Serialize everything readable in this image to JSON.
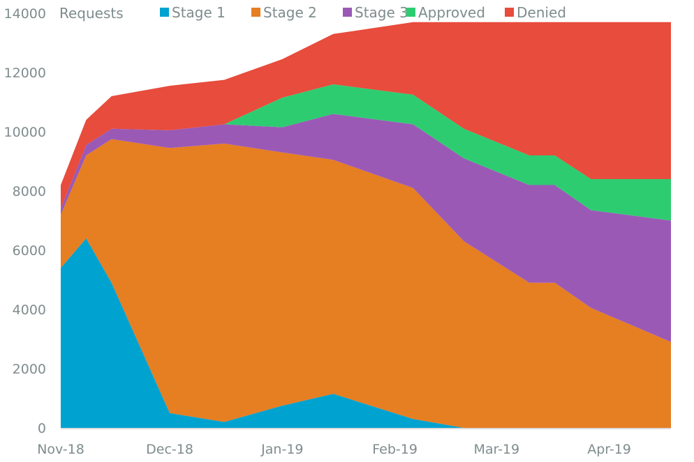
{
  "chart_data": {
    "type": "area",
    "stacked": true,
    "title": "",
    "ylabel": "Requests",
    "xlabel": "",
    "ylim": [
      0,
      14000
    ],
    "yticks": [
      0,
      2000,
      4000,
      6000,
      8000,
      10000,
      12000,
      14000
    ],
    "xticks": [
      "Nov-18",
      "Dec-18",
      "Jan-19",
      "Feb-19",
      "Mar-19",
      "Apr-19"
    ],
    "x": [
      "2018-11-01",
      "2018-11-08",
      "2018-11-15",
      "2018-12-01",
      "2018-12-16",
      "2019-01-01",
      "2019-01-15",
      "2019-02-06",
      "2019-02-20",
      "2019-03-10",
      "2019-03-17",
      "2019-03-27",
      "2019-04-18"
    ],
    "legend_position": "top",
    "series": [
      {
        "name": "Stage 1",
        "color": "#00a2d0",
        "values": [
          5400,
          6400,
          4900,
          500,
          200,
          750,
          1150,
          300,
          0,
          0,
          0,
          0,
          0
        ]
      },
      {
        "name": "Stage 2",
        "color": "#e67e22",
        "values": [
          1800,
          2800,
          4850,
          8950,
          9400,
          8550,
          7900,
          7800,
          6300,
          4900,
          4900,
          4050,
          2900
        ]
      },
      {
        "name": "Stage 3",
        "color": "#9b59b6",
        "values": [
          200,
          350,
          350,
          600,
          650,
          850,
          1550,
          2150,
          2800,
          3300,
          3300,
          3300,
          4100
        ]
      },
      {
        "name": "Approved",
        "color": "#2ecc71",
        "values": [
          0,
          0,
          0,
          0,
          0,
          1000,
          1000,
          1000,
          1000,
          1000,
          1000,
          1050,
          1400
        ]
      },
      {
        "name": "Denied",
        "color": "#e74c3c",
        "values": [
          800,
          850,
          1100,
          1500,
          1500,
          1300,
          1700,
          2450,
          3600,
          4500,
          4500,
          5300,
          5300
        ]
      }
    ]
  }
}
